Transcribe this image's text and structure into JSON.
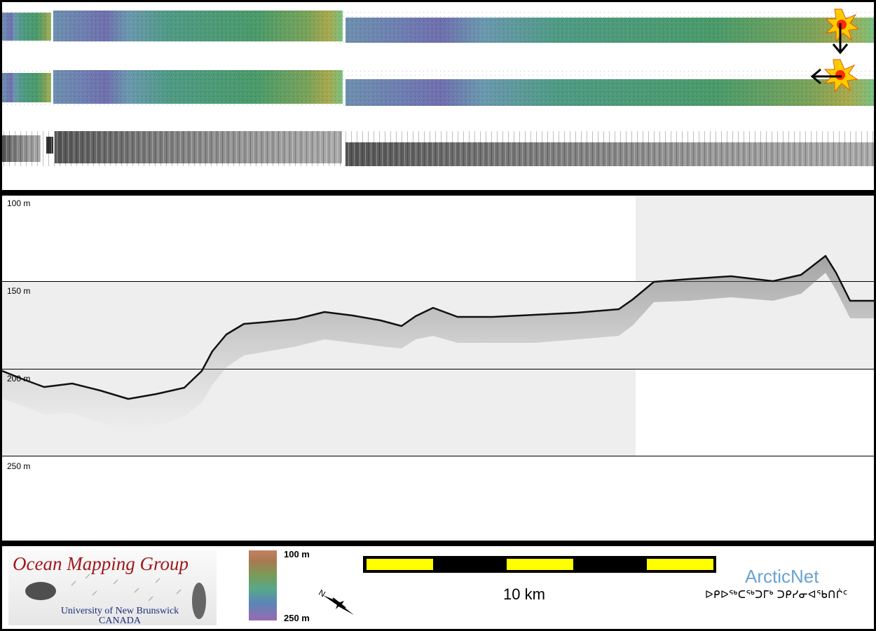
{
  "depth_labels": [
    "100 m",
    "150 m",
    "200 m",
    "250 m"
  ],
  "logo": {
    "title": "Ocean Mapping Group",
    "university": "University of New Brunswick",
    "country": "CANADA"
  },
  "colorbar": {
    "min_label": "100 m",
    "max_label": "250 m"
  },
  "compass": {
    "north_label": "N"
  },
  "scale": {
    "label": "10 km"
  },
  "arcticnet": {
    "title": "ArcticNet",
    "syllabics": "ᐅᑭᐅᖅᑕᖅᑐᒥᒃ ᑐᑭᓯᓂᐊᖃᑎᒌᑦ"
  },
  "colors": {
    "frame": "#000000",
    "profile_shade": "#eeeeee",
    "scale_fill": "#ffff00",
    "omg_title": "#a0181c",
    "arcticnet_blue": "#6aa2d2"
  }
}
